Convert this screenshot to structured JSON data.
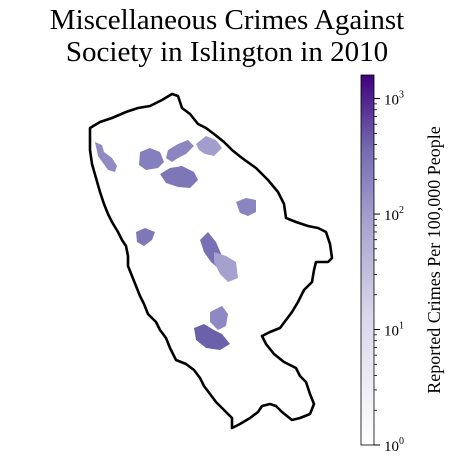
{
  "title": {
    "line1": "Miscellaneous Crimes Against",
    "line2": "Society in Islington in 2010"
  },
  "colorbar": {
    "label": "Reported Crimes Per 100,000 People",
    "scale": "log",
    "range": [
      1,
      1600
    ],
    "ticks": [
      {
        "base": "10",
        "exp": "3",
        "value": 1000
      },
      {
        "base": "10",
        "exp": "2",
        "value": 100
      },
      {
        "base": "10",
        "exp": "1",
        "value": 10
      },
      {
        "base": "10",
        "exp": "0",
        "value": 1
      }
    ],
    "color_low": "#ffffff",
    "color_mid": "#9e9ac8",
    "color_high": "#3f007d"
  },
  "map": {
    "boundary_color": "#000000",
    "area_colors": [
      "#8f8cc3",
      "#7f78b8",
      "#a39fcc",
      "#7a72b5",
      "#6b61aa"
    ]
  }
}
